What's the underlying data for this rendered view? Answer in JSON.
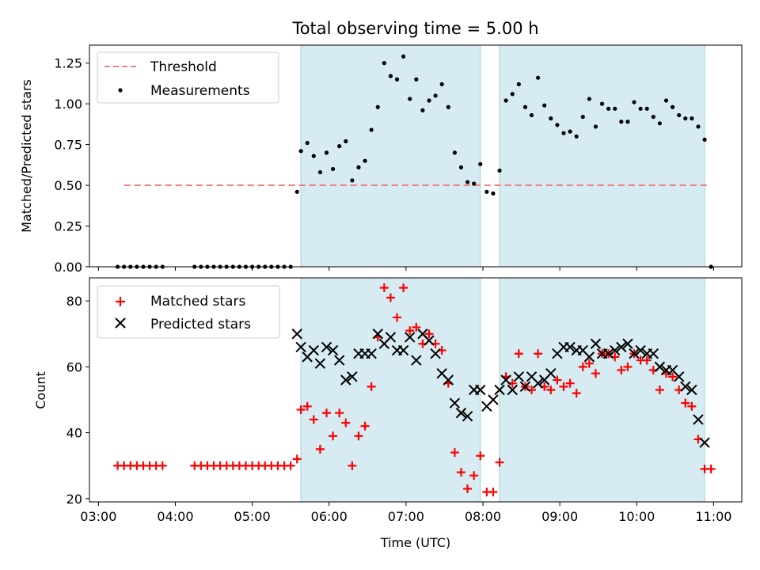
{
  "chart_data": [
    {
      "type": "scatter",
      "title": "Total observing time = 5.00 h",
      "xlabel": "",
      "ylabel": "Matched/Predicted stars",
      "x_unit": "Time (UTC)",
      "ylim": [
        0,
        1.36
      ],
      "yticks": [
        "0.00",
        "0.25",
        "0.50",
        "0.75",
        "1.00",
        "1.25"
      ],
      "legend": {
        "placement": "top-left",
        "entries": [
          "Threshold",
          "Measurements"
        ]
      },
      "threshold": {
        "name": "Threshold",
        "value": 0.5,
        "x_start": "03:20",
        "x_end": "10:57",
        "color": "#f08080"
      },
      "shaded_intervals": [
        [
          "05:38",
          "07:58"
        ],
        [
          "08:13",
          "10:53"
        ]
      ],
      "series": [
        {
          "name": "Measurements",
          "color": "#000000",
          "x": [
            "03:15",
            "03:20",
            "03:25",
            "03:30",
            "03:35",
            "03:40",
            "03:45",
            "03:50",
            "04:15",
            "04:20",
            "04:25",
            "04:30",
            "04:35",
            "04:40",
            "04:45",
            "04:50",
            "04:55",
            "05:00",
            "05:05",
            "05:10",
            "05:15",
            "05:20",
            "05:25",
            "05:30",
            "05:35",
            "05:38",
            "05:43",
            "05:48",
            "05:53",
            "05:58",
            "06:03",
            "06:08",
            "06:13",
            "06:18",
            "06:23",
            "06:28",
            "06:33",
            "06:38",
            "06:43",
            "06:48",
            "06:53",
            "06:58",
            "07:03",
            "07:08",
            "07:13",
            "07:18",
            "07:23",
            "07:28",
            "07:33",
            "07:38",
            "07:43",
            "07:48",
            "07:53",
            "07:58",
            "08:03",
            "08:08",
            "08:13",
            "08:18",
            "08:23",
            "08:28",
            "08:33",
            "08:38",
            "08:43",
            "08:48",
            "08:53",
            "08:58",
            "09:03",
            "09:08",
            "09:13",
            "09:18",
            "09:23",
            "09:28",
            "09:33",
            "09:38",
            "09:43",
            "09:48",
            "09:53",
            "09:58",
            "10:03",
            "10:08",
            "10:13",
            "10:18",
            "10:23",
            "10:28",
            "10:33",
            "10:38",
            "10:43",
            "10:48",
            "10:53",
            "10:58"
          ],
          "y": [
            0,
            0,
            0,
            0,
            0,
            0,
            0,
            0,
            0,
            0,
            0,
            0,
            0,
            0,
            0,
            0,
            0,
            0,
            0,
            0,
            0,
            0,
            0,
            0,
            0.46,
            0.71,
            0.76,
            0.68,
            0.58,
            0.7,
            0.6,
            0.74,
            0.77,
            0.53,
            0.61,
            0.65,
            0.84,
            0.98,
            1.25,
            1.17,
            1.15,
            1.29,
            1.03,
            1.15,
            0.96,
            1.02,
            1.05,
            1.12,
            0.98,
            0.7,
            0.61,
            0.52,
            0.51,
            0.63,
            0.46,
            0.45,
            0.59,
            1.02,
            1.06,
            1.12,
            0.98,
            0.93,
            1.16,
            0.99,
            0.91,
            0.87,
            0.82,
            0.83,
            0.8,
            0.92,
            1.03,
            0.86,
            1.0,
            0.97,
            0.97,
            0.89,
            0.89,
            1.01,
            0.97,
            0.97,
            0.92,
            0.88,
            1.02,
            0.98,
            0.93,
            0.91,
            0.91,
            0.86,
            0.78,
            0
          ]
        }
      ]
    },
    {
      "type": "scatter",
      "title": "",
      "xlabel": "Time (UTC)",
      "ylabel": "Count",
      "ylim": [
        19,
        87
      ],
      "yticks": [
        "20",
        "40",
        "60",
        "80"
      ],
      "xticks": [
        "03:00",
        "04:00",
        "05:00",
        "06:00",
        "07:00",
        "08:00",
        "09:00",
        "10:00",
        "11:00"
      ],
      "xlim": [
        "02:53",
        "11:22"
      ],
      "legend": {
        "placement": "top-left",
        "entries": [
          "Matched stars",
          "Predicted stars"
        ]
      },
      "shaded_intervals": [
        [
          "05:38",
          "07:58"
        ],
        [
          "08:13",
          "10:53"
        ]
      ],
      "series": [
        {
          "name": "Matched stars",
          "marker": "+",
          "color": "#ff0000",
          "x": [
            "03:15",
            "03:20",
            "03:25",
            "03:30",
            "03:35",
            "03:40",
            "03:45",
            "03:50",
            "04:15",
            "04:20",
            "04:25",
            "04:30",
            "04:35",
            "04:40",
            "04:45",
            "04:50",
            "04:55",
            "05:00",
            "05:05",
            "05:10",
            "05:15",
            "05:20",
            "05:25",
            "05:30",
            "05:35",
            "05:38",
            "05:43",
            "05:48",
            "05:53",
            "05:58",
            "06:03",
            "06:08",
            "06:13",
            "06:18",
            "06:23",
            "06:28",
            "06:33",
            "06:38",
            "06:43",
            "06:48",
            "06:53",
            "06:58",
            "07:03",
            "07:08",
            "07:13",
            "07:18",
            "07:23",
            "07:28",
            "07:33",
            "07:38",
            "07:43",
            "07:48",
            "07:53",
            "07:58",
            "08:03",
            "08:08",
            "08:13",
            "08:18",
            "08:23",
            "08:28",
            "08:33",
            "08:38",
            "08:43",
            "08:48",
            "08:53",
            "08:58",
            "09:03",
            "09:08",
            "09:13",
            "09:18",
            "09:23",
            "09:28",
            "09:33",
            "09:38",
            "09:43",
            "09:48",
            "09:53",
            "09:58",
            "10:03",
            "10:08",
            "10:13",
            "10:18",
            "10:23",
            "10:28",
            "10:33",
            "10:38",
            "10:43",
            "10:48",
            "10:53",
            "10:58"
          ],
          "y": [
            30,
            30,
            30,
            30,
            30,
            30,
            30,
            30,
            30,
            30,
            30,
            30,
            30,
            30,
            30,
            30,
            30,
            30,
            30,
            30,
            30,
            30,
            30,
            30,
            32,
            47,
            48,
            44,
            35,
            46,
            39,
            46,
            43,
            30,
            39,
            42,
            54,
            69,
            84,
            81,
            75,
            84,
            71,
            72,
            67,
            70,
            67,
            65,
            55,
            34,
            28,
            23,
            27,
            33,
            22,
            22,
            31,
            57,
            55,
            64,
            54,
            53,
            64,
            54,
            53,
            56,
            54,
            55,
            52,
            60,
            61,
            58,
            64,
            64,
            63,
            59,
            60,
            64,
            62,
            62,
            59,
            53,
            58,
            57,
            53,
            49,
            48,
            38,
            29,
            29
          ]
        },
        {
          "name": "Predicted stars",
          "marker": "x",
          "color": "#000000",
          "x": [
            "05:35",
            "05:38",
            "05:43",
            "05:48",
            "05:53",
            "05:58",
            "06:03",
            "06:08",
            "06:13",
            "06:18",
            "06:23",
            "06:28",
            "06:33",
            "06:38",
            "06:43",
            "06:48",
            "06:53",
            "06:58",
            "07:03",
            "07:08",
            "07:13",
            "07:18",
            "07:23",
            "07:28",
            "07:33",
            "07:38",
            "07:43",
            "07:48",
            "07:53",
            "07:58",
            "08:03",
            "08:08",
            "08:13",
            "08:18",
            "08:23",
            "08:28",
            "08:33",
            "08:38",
            "08:43",
            "08:48",
            "08:53",
            "08:58",
            "09:03",
            "09:08",
            "09:13",
            "09:18",
            "09:23",
            "09:28",
            "09:33",
            "09:38",
            "09:43",
            "09:48",
            "09:53",
            "09:58",
            "10:03",
            "10:08",
            "10:13",
            "10:18",
            "10:23",
            "10:28",
            "10:33",
            "10:38",
            "10:43",
            "10:48",
            "10:53"
          ],
          "y": [
            70,
            66,
            63,
            65,
            61,
            66,
            65,
            62,
            56,
            57,
            64,
            64,
            64,
            70,
            67,
            69,
            65,
            65,
            69,
            62,
            70,
            68,
            64,
            58,
            56,
            49,
            46,
            45,
            53,
            53,
            48,
            50,
            53,
            56,
            53,
            57,
            54,
            57,
            55,
            56,
            58,
            64,
            66,
            66,
            65,
            65,
            63,
            67,
            64,
            64,
            65,
            66,
            67,
            64,
            65,
            64,
            64,
            60,
            59,
            59,
            57,
            54,
            53,
            44,
            37
          ]
        }
      ]
    }
  ]
}
